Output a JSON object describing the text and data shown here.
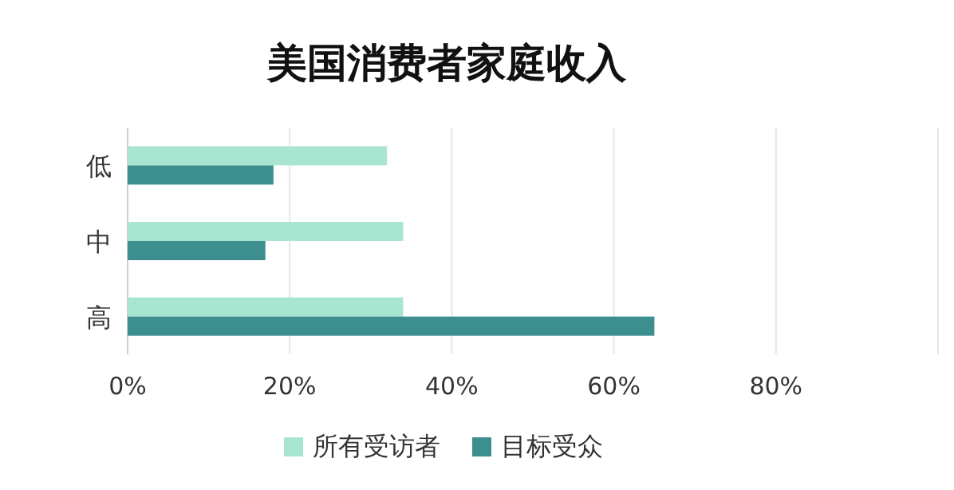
{
  "chart_data": {
    "type": "bar",
    "orientation": "horizontal",
    "title": "美国消费者家庭收入",
    "categories": [
      "低",
      "中",
      "高"
    ],
    "series": [
      {
        "name": "所有受访者",
        "color": "#a8e6d2",
        "values": [
          32,
          34,
          34
        ]
      },
      {
        "name": "目标受众",
        "color": "#3d8f8f",
        "values": [
          18,
          17,
          65
        ]
      }
    ],
    "xlim": [
      0,
      100
    ],
    "xticks": [
      {
        "value": 0,
        "label": "0%"
      },
      {
        "value": 20,
        "label": "20%"
      },
      {
        "value": 40,
        "label": "40%"
      },
      {
        "value": 60,
        "label": "60%"
      },
      {
        "value": 80,
        "label": "80%"
      },
      {
        "value": 100,
        "label": null
      }
    ],
    "grid": "x",
    "legend": "bottom"
  }
}
